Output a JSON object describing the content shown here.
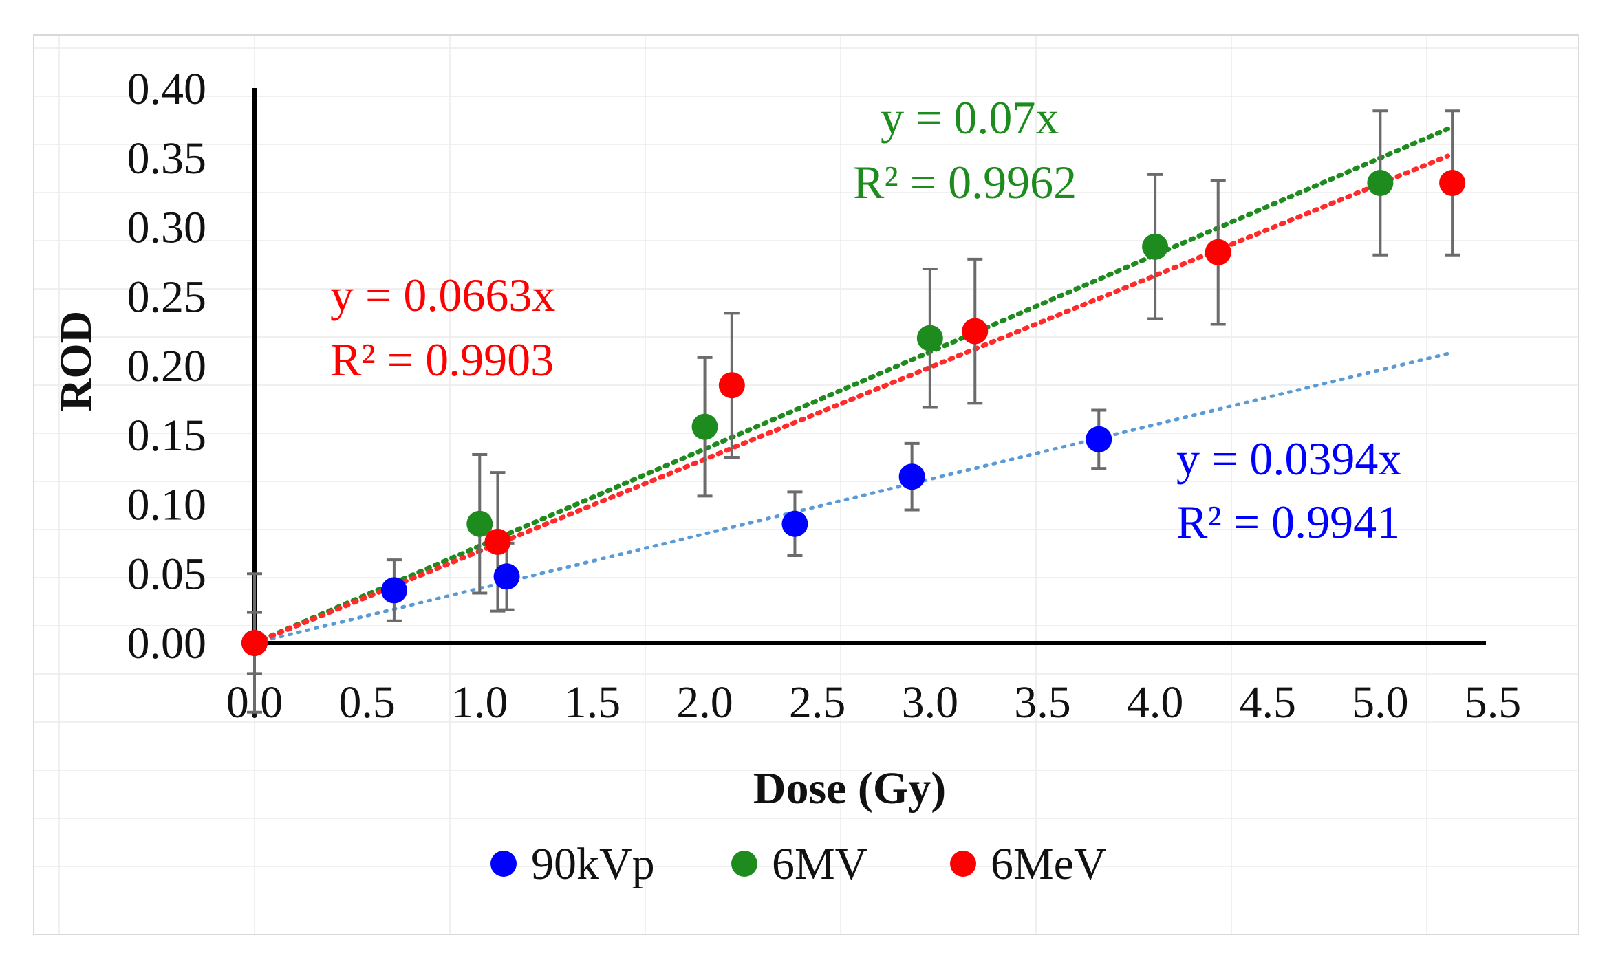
{
  "chart_data": {
    "type": "scatter",
    "title": "",
    "xlabel": "Dose (Gy)",
    "ylabel": "ROD",
    "xlim": [
      0.0,
      5.5
    ],
    "ylim": [
      0.0,
      0.4
    ],
    "x_ticks": [
      "0.0",
      "0.5",
      "1.0",
      "1.5",
      "2.0",
      "2.5",
      "3.0",
      "3.5",
      "4.0",
      "4.5",
      "5.0",
      "5.5"
    ],
    "y_ticks": [
      "0.00",
      "0.05",
      "0.10",
      "0.15",
      "0.20",
      "0.25",
      "0.30",
      "0.35",
      "0.40"
    ],
    "legend_position": "bottom",
    "series": [
      {
        "name": "90kVp",
        "color": "#0000ff",
        "trend_color": "#5b9bd5",
        "x": [
          0.0,
          0.62,
          1.12,
          2.4,
          2.92,
          3.75
        ],
        "y": [
          0.0,
          0.038,
          0.048,
          0.086,
          0.12,
          0.147
        ],
        "err": [
          0.0,
          0.022,
          0.024,
          0.023,
          0.024,
          0.021
        ],
        "trend": {
          "slope": 0.0394,
          "x_end": 5.3
        },
        "equation": "y = 0.0394x",
        "r2": "R² = 0.9941"
      },
      {
        "name": "6MV",
        "color": "#1e8b1e",
        "trend_color": "#1e8b1e",
        "x": [
          0.0,
          1.0,
          2.0,
          3.0,
          4.0,
          5.0
        ],
        "y": [
          0.0,
          0.086,
          0.156,
          0.22,
          0.286,
          0.332
        ],
        "err": [
          0.05,
          0.05,
          0.05,
          0.05,
          0.052,
          0.052
        ],
        "trend": {
          "slope": 0.07,
          "x_end": 5.3
        },
        "equation": "y = 0.07x",
        "r2": "R² = 0.9962"
      },
      {
        "name": "6MeV",
        "color": "#ff0000",
        "trend_color": "#ff2a2a",
        "x": [
          0.0,
          1.08,
          2.12,
          3.2,
          4.28,
          5.32
        ],
        "y": [
          0.0,
          0.073,
          0.186,
          0.225,
          0.282,
          0.332
        ],
        "err": [
          0.022,
          0.05,
          0.052,
          0.052,
          0.052,
          0.052
        ],
        "trend": {
          "slope": 0.0663,
          "x_end": 5.3
        },
        "equation": "y = 0.0663x",
        "r2": "R² = 0.9903"
      }
    ]
  }
}
